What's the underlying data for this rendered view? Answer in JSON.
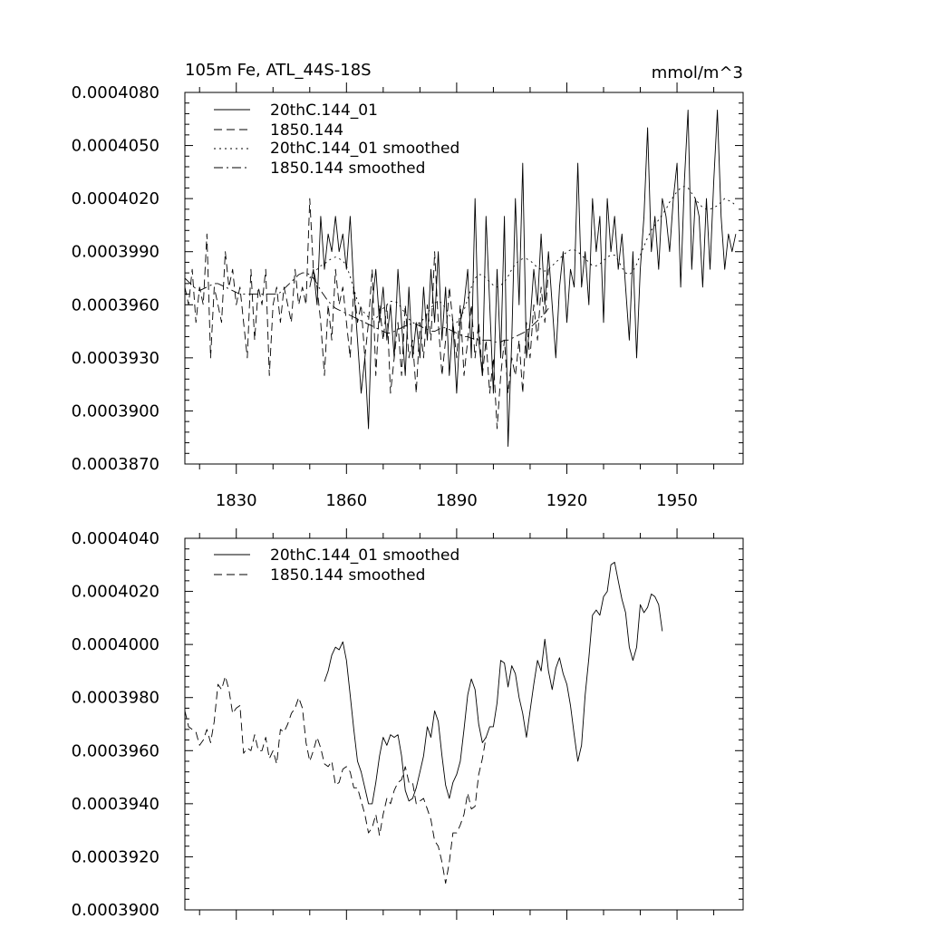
{
  "chart_data": [
    {
      "type": "line",
      "title": "105m Fe, ATL_44S-18S",
      "units_label": "mmol/m^3",
      "xlim": [
        1816,
        1968
      ],
      "ylim": [
        0.000387,
        0.000408
      ],
      "y_ticks": [
        0.000387,
        0.00039,
        0.000393,
        0.000396,
        0.000399,
        0.000402,
        0.000405,
        0.000408
      ],
      "y_tick_labels": [
        "0.0003870",
        "0.0003900",
        "0.0003930",
        "0.0003960",
        "0.0003990",
        "0.0004020",
        "0.0004050",
        "0.0004080"
      ],
      "x_ticks": [
        1830,
        1860,
        1890,
        1920,
        1950
      ],
      "x_tick_labels": [
        "1830",
        "1860",
        "1890",
        "1920",
        "1950"
      ],
      "legend_position": "top-left",
      "series": [
        {
          "name": "20thC.144_01",
          "style": "solid",
          "x_start": 1850,
          "x_step": 1,
          "values": [
            0.000397,
            0.000398,
            0.000396,
            0.000401,
            0.000398,
            0.0004,
            0.000399,
            0.000401,
            0.000399,
            0.0004,
            0.000398,
            0.000401,
            0.000397,
            0.000394,
            0.000391,
            0.000393,
            0.000389,
            0.000396,
            0.000398,
            0.000395,
            0.000397,
            0.000394,
            0.000396,
            0.000393,
            0.000398,
            0.000395,
            0.000392,
            0.000397,
            0.000393,
            0.000395,
            0.000393,
            0.000397,
            0.000394,
            0.000398,
            0.000395,
            0.000399,
            0.000394,
            0.000397,
            0.000392,
            0.000395,
            0.000391,
            0.000395,
            0.000396,
            0.000398,
            0.000393,
            0.000402,
            0.000394,
            0.000392,
            0.000401,
            0.000396,
            0.000391,
            0.000398,
            0.000393,
            0.000401,
            0.000388,
            0.000394,
            0.000402,
            0.000396,
            0.000404,
            0.000393,
            0.000395,
            0.000398,
            0.000396,
            0.0004,
            0.000396,
            0.000399,
            0.000396,
            0.000393,
            0.000397,
            0.000399,
            0.000395,
            0.000398,
            0.000397,
            0.000404,
            0.000397,
            0.000399,
            0.000396,
            0.000402,
            0.000399,
            0.000401,
            0.000395,
            0.000402,
            0.000399,
            0.000401,
            0.000398,
            0.0004,
            0.000397,
            0.000394,
            0.000399,
            0.000393,
            0.000398,
            0.000401,
            0.000406,
            0.000399,
            0.000401,
            0.000398,
            0.000402,
            0.000401,
            0.000399,
            0.000402,
            0.000404,
            0.000397,
            0.000403,
            0.000407,
            0.000398,
            0.000402,
            0.000401,
            0.000397,
            0.000402,
            0.000398,
            0.000403,
            0.000407,
            0.000401,
            0.000398,
            0.0004,
            0.000399,
            0.0004
          ]
        },
        {
          "name": "1850.144",
          "style": "dashed",
          "x_start": 1816,
          "x_step": 1,
          "values": [
            0.000397,
            0.000396,
            0.000398,
            0.000395,
            0.000397,
            0.000396,
            0.0004,
            0.000393,
            0.000397,
            0.000396,
            0.000395,
            0.000399,
            0.000397,
            0.000398,
            0.000396,
            0.000397,
            0.000395,
            0.000393,
            0.000398,
            0.000394,
            0.000397,
            0.000396,
            0.000398,
            0.000392,
            0.000396,
            0.000397,
            0.000395,
            0.000397,
            0.000396,
            0.000395,
            0.000398,
            0.000396,
            0.000397,
            0.000396,
            0.000402,
            0.000398,
            0.000397,
            0.000395,
            0.000392,
            0.000396,
            0.000394,
            0.000398,
            0.000396,
            0.000397,
            0.000395,
            0.000393,
            0.000397,
            0.000395,
            0.000396,
            0.000393,
            0.000395,
            0.000398,
            0.000392,
            0.000396,
            0.000394,
            0.000396,
            0.000391,
            0.000393,
            0.000395,
            0.000392,
            0.000396,
            0.000393,
            0.000394,
            0.000391,
            0.000395,
            0.000393,
            0.000396,
            0.000394,
            0.000399,
            0.000395,
            0.000392,
            0.000394,
            0.000397,
            0.000395,
            0.000393,
            0.000396,
            0.000392,
            0.000394,
            0.000396,
            0.000393,
            0.000395,
            0.000392,
            0.000394,
            0.000391,
            0.000393,
            0.000389,
            0.000392,
            0.000394,
            0.000391,
            0.000393,
            0.000392,
            0.000394,
            0.000391,
            0.000395,
            0.000393,
            0.000396,
            0.000394,
            0.000397,
            0.000395,
            0.000398
          ]
        },
        {
          "name": "20thC.144_01 smoothed",
          "style": "dotted",
          "x_start": 1850,
          "x_step": 1,
          "values": [
            0.0003975,
            0.0003978,
            0.000398,
            0.0003982,
            0.0003983,
            0.0003985,
            0.0003986,
            0.0003987,
            0.0003986,
            0.0003985,
            0.0003982,
            0.0003976,
            0.0003969,
            0.0003962,
            0.0003958,
            0.0003955,
            0.0003953,
            0.0003952,
            0.0003952,
            0.0003955,
            0.0003958,
            0.000396,
            0.0003962,
            0.0003962,
            0.0003961,
            0.0003958,
            0.0003955,
            0.0003952,
            0.000395,
            0.0003949,
            0.000395,
            0.0003952,
            0.0003955,
            0.0003958,
            0.0003961,
            0.0003962,
            0.0003961,
            0.0003958,
            0.0003954,
            0.0003951,
            0.000395,
            0.0003952,
            0.0003957,
            0.0003963,
            0.000397,
            0.0003975,
            0.0003977,
            0.0003977,
            0.0003975,
            0.0003973,
            0.0003971,
            0.000397,
            0.0003971,
            0.0003973,
            0.0003976,
            0.000398,
            0.0003983,
            0.0003985,
            0.0003986,
            0.0003986,
            0.0003985,
            0.0003983,
            0.0003981,
            0.000398,
            0.0003979,
            0.000398,
            0.0003982,
            0.0003984,
            0.0003986,
            0.0003988,
            0.000399,
            0.0003991,
            0.0003991,
            0.000399,
            0.0003988,
            0.0003986,
            0.0003984,
            0.0003982,
            0.0003982,
            0.0003983,
            0.0003985,
            0.0003987,
            0.0003988,
            0.0003988,
            0.0003985,
            0.0003981,
            0.0003978,
            0.0003977,
            0.0003979,
            0.0003983,
            0.0003988,
            0.0003993,
            0.0003998,
            0.0004002,
            0.0004005,
            0.0004008,
            0.0004011,
            0.0004014,
            0.0004018,
            0.0004021,
            0.0004024,
            0.0004026,
            0.0004027,
            0.0004026,
            0.0004023,
            0.000402,
            0.0004017,
            0.0004015,
            0.0004014,
            0.0004014,
            0.0004015,
            0.0004016,
            0.0004018,
            0.000402,
            0.0004019,
            0.0004018,
            0.0004016
          ]
        },
        {
          "name": "1850.144 smoothed",
          "style": "dashdot",
          "x_start": 1816,
          "x_step": 1,
          "values": [
            0.0003975,
            0.0003973,
            0.0003971,
            0.0003969,
            0.0003968,
            0.0003969,
            0.000397,
            0.0003971,
            0.0003972,
            0.0003972,
            0.0003971,
            0.000397,
            0.0003969,
            0.0003968,
            0.0003967,
            0.0003966,
            0.0003966,
            0.0003966,
            0.0003966,
            0.0003966,
            0.0003966,
            0.0003966,
            0.0003966,
            0.0003966,
            0.0003966,
            0.0003966,
            0.0003967,
            0.0003969,
            0.0003971,
            0.0003973,
            0.0003975,
            0.0003977,
            0.0003978,
            0.0003978,
            0.0003977,
            0.0003975,
            0.0003972,
            0.0003968,
            0.0003965,
            0.0003962,
            0.000396,
            0.0003958,
            0.0003957,
            0.0003956,
            0.0003955,
            0.0003954,
            0.0003953,
            0.0003952,
            0.0003951,
            0.000395,
            0.0003949,
            0.0003948,
            0.0003947,
            0.0003946,
            0.0003945,
            0.0003944,
            0.0003944,
            0.0003945,
            0.0003946,
            0.0003947,
            0.0003948,
            0.0003949,
            0.0003949,
            0.0003949,
            0.0003948,
            0.0003947,
            0.0003946,
            0.0003945,
            0.0003945,
            0.0003946,
            0.0003947,
            0.0003947,
            0.0003946,
            0.0003945,
            0.0003944,
            0.0003943,
            0.0003942,
            0.0003942,
            0.0003941,
            0.0003941,
            0.000394,
            0.000394,
            0.000394,
            0.000394,
            0.0003939,
            0.0003939,
            0.0003939,
            0.000394,
            0.000394,
            0.0003941,
            0.0003942,
            0.0003943,
            0.0003944,
            0.0003945,
            0.0003947,
            0.0003949,
            0.0003951,
            0.0003953,
            0.0003955,
            0.0003958
          ]
        }
      ]
    },
    {
      "type": "line",
      "title": "",
      "units_label": "",
      "xlim": [
        1816,
        1968
      ],
      "ylim": [
        0.00039,
        0.000404
      ],
      "y_ticks": [
        0.00039,
        0.000392,
        0.000394,
        0.000396,
        0.000398,
        0.0004,
        0.000402,
        0.000404
      ],
      "y_tick_labels": [
        "0.0003900",
        "0.0003920",
        "0.0003940",
        "0.0003960",
        "0.0003980",
        "0.0004000",
        "0.0004020",
        "0.0004040"
      ],
      "x_ticks": [
        1830,
        1860,
        1890,
        1920,
        1950
      ],
      "x_tick_labels": [],
      "legend_position": "top-left",
      "series": [
        {
          "name": "20thC.144_01 smoothed",
          "style": "solid",
          "x_start": 1854,
          "x_step": 1,
          "values": [
            0.0003986,
            0.000399,
            0.0003996,
            0.0003999,
            0.0003998,
            0.0004001,
            0.0003994,
            0.0003981,
            0.0003968,
            0.0003956,
            0.0003952,
            0.0003946,
            0.000394,
            0.000394,
            0.0003948,
            0.0003958,
            0.0003965,
            0.0003962,
            0.0003966,
            0.0003965,
            0.0003966,
            0.0003958,
            0.0003945,
            0.0003941,
            0.0003942,
            0.0003946,
            0.0003952,
            0.0003958,
            0.0003969,
            0.0003965,
            0.0003975,
            0.0003971,
            0.0003958,
            0.0003947,
            0.0003942,
            0.0003948,
            0.0003951,
            0.0003956,
            0.0003968,
            0.0003981,
            0.0003987,
            0.0003983,
            0.000397,
            0.0003963,
            0.0003965,
            0.0003969,
            0.0003969,
            0.0003978,
            0.0003994,
            0.0003993,
            0.0003984,
            0.0003992,
            0.0003989,
            0.000398,
            0.0003974,
            0.0003965,
            0.0003975,
            0.0003985,
            0.0003994,
            0.000399,
            0.0004002,
            0.000399,
            0.0003983,
            0.0003991,
            0.0003995,
            0.0003989,
            0.0003985,
            0.0003977,
            0.0003966,
            0.0003956,
            0.0003962,
            0.0003981,
            0.0003995,
            0.0004011,
            0.0004013,
            0.0004011,
            0.0004018,
            0.000402,
            0.000403,
            0.0004031,
            0.0004024,
            0.0004017,
            0.0004012,
            0.0003999,
            0.0003994,
            0.0003999,
            0.0004015,
            0.0004012,
            0.0004014,
            0.0004019,
            0.0004018,
            0.0004015,
            0.0004005
          ]
        },
        {
          "name": "1850.144 smoothed",
          "style": "dashed",
          "x_start": 1816,
          "x_step": 1,
          "values": [
            0.0003975,
            0.0003969,
            0.0003968,
            0.0003967,
            0.0003962,
            0.0003964,
            0.0003968,
            0.0003963,
            0.0003971,
            0.0003985,
            0.0003983,
            0.0003988,
            0.0003983,
            0.0003974,
            0.0003976,
            0.0003977,
            0.0003959,
            0.0003961,
            0.000396,
            0.0003966,
            0.000396,
            0.000396,
            0.0003965,
            0.0003957,
            0.000396,
            0.0003955,
            0.0003968,
            0.0003967,
            0.000397,
            0.0003974,
            0.0003976,
            0.000398,
            0.0003976,
            0.0003963,
            0.0003956,
            0.000396,
            0.0003965,
            0.0003961,
            0.0003955,
            0.0003954,
            0.0003956,
            0.0003947,
            0.0003948,
            0.0003953,
            0.0003954,
            0.0003952,
            0.0003946,
            0.0003946,
            0.0003941,
            0.0003936,
            0.0003929,
            0.0003931,
            0.0003936,
            0.0003928,
            0.0003936,
            0.0003942,
            0.000394,
            0.0003945,
            0.0003948,
            0.0003949,
            0.0003954,
            0.0003948,
            0.0003948,
            0.000394,
            0.0003941,
            0.0003942,
            0.0003938,
            0.0003934,
            0.0003926,
            0.0003924,
            0.0003918,
            0.000391,
            0.0003918,
            0.0003929,
            0.0003929,
            0.0003932,
            0.0003936,
            0.0003944,
            0.0003938,
            0.0003939,
            0.0003951,
            0.0003957,
            0.0003965
          ]
        }
      ]
    }
  ]
}
